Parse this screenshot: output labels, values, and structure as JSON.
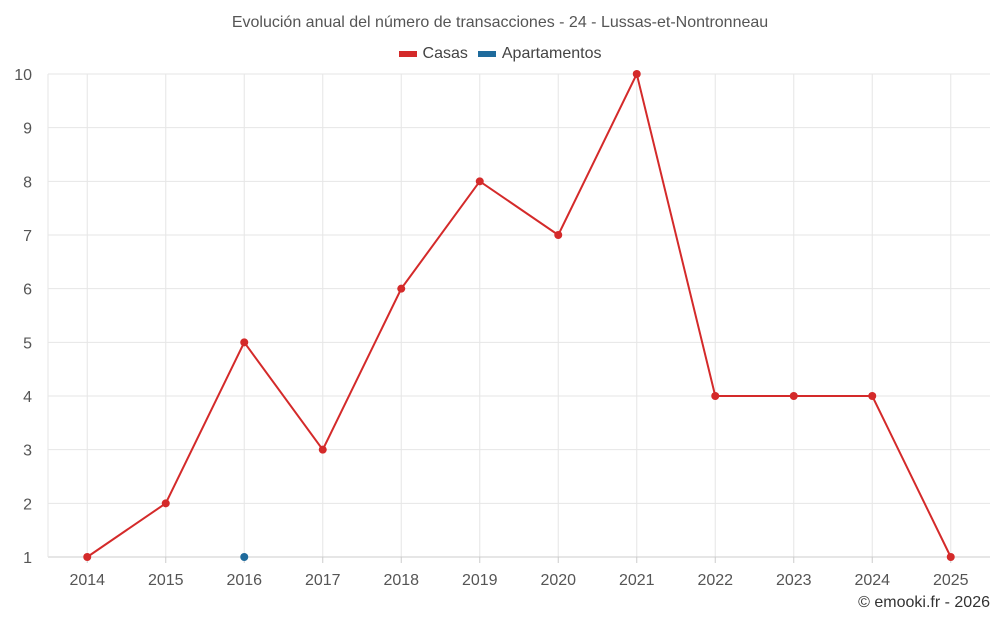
{
  "chart_data": {
    "type": "line",
    "title": "Evolución anual del número de transacciones - 24 - Lussas-et-Nontronneau",
    "categories": [
      "2014",
      "2015",
      "2016",
      "2017",
      "2018",
      "2019",
      "2020",
      "2021",
      "2022",
      "2023",
      "2024",
      "2025"
    ],
    "ylim": [
      1,
      10
    ],
    "yticks": [
      1,
      2,
      3,
      4,
      5,
      6,
      7,
      8,
      9,
      10
    ],
    "grid": true,
    "legend_position": "top-center",
    "series": [
      {
        "name": "Casas",
        "color": "#d42a2a",
        "values": [
          1,
          2,
          5,
          3,
          6,
          8,
          7,
          10,
          4,
          4,
          4,
          1
        ]
      },
      {
        "name": "Apartamentos",
        "color": "#1f6b9c",
        "values": [
          null,
          null,
          1,
          null,
          null,
          null,
          null,
          null,
          null,
          null,
          null,
          null
        ]
      }
    ]
  },
  "footer": {
    "credit": "© emooki.fr - 2026"
  }
}
